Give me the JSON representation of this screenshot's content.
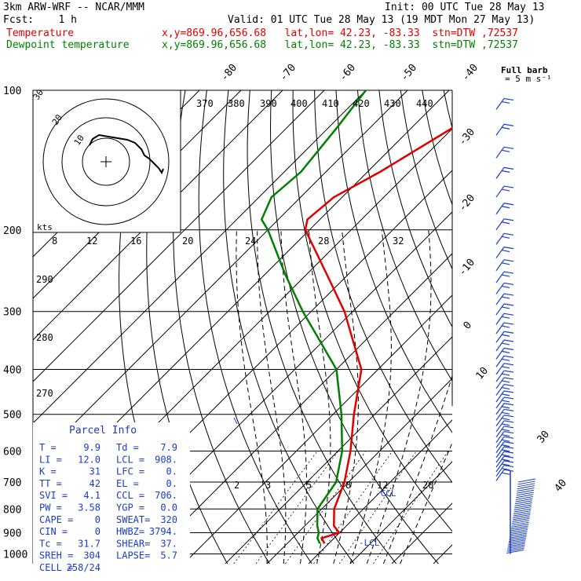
{
  "header": {
    "model": "3km ARW-WRF -- NCAR/MMM",
    "init": "Init: 00 UTC Tue 28 May 13",
    "fcst": "Fcst:    1 h",
    "valid": "Valid: 01 UTC Tue 28 May 13 (19 MDT Mon 27 May 13)",
    "temp_label": "Temperature",
    "dew_label": "Dewpoint temperature",
    "temp_loc": "x,y=869.96,656.68   lat,lon= 42.23, -83.33  stn=DTW ,72537",
    "dew_loc": "x,y=869.96,656.68   lat,lon= 42.23, -83.33  stn=DTW ,72537"
  },
  "colors": {
    "temp": "#e00000",
    "dew": "#008000",
    "panel": "#1a3cc8",
    "barb": "#1a3cc8"
  },
  "chart_data": {
    "type": "line",
    "pressure_levels": [
      100,
      200,
      300,
      400,
      500,
      600,
      700,
      800,
      900,
      1000
    ],
    "pressure_labels": [
      "100",
      "200",
      "300",
      "400",
      "500",
      "600",
      "700",
      "800",
      "900",
      "1000"
    ],
    "isotherm_labels_top": [
      "-80",
      "-70",
      "-60",
      "-50",
      "-40"
    ],
    "isotherm_labels_side": [
      "-30",
      "-20",
      "-10",
      "0",
      "10",
      "30",
      "40"
    ],
    "theta_labels_top": [
      "370",
      "380",
      "390",
      "400",
      "410",
      "420",
      "430",
      "440"
    ],
    "theta_labels_left": [
      "290",
      "280",
      "270"
    ],
    "mixing_ratio_labels": [
      "2",
      "3",
      "5",
      "8",
      "12",
      "20"
    ],
    "temperature_series": {
      "name": "Temperature",
      "points": [
        [
          100,
          -57
        ],
        [
          120,
          -60
        ],
        [
          150,
          -67
        ],
        [
          170,
          -72
        ],
        [
          190,
          -73
        ],
        [
          200,
          -71
        ],
        [
          250,
          -55
        ],
        [
          300,
          -42
        ],
        [
          400,
          -24
        ],
        [
          500,
          -15
        ],
        [
          600,
          -7
        ],
        [
          700,
          -1
        ],
        [
          800,
          3
        ],
        [
          870,
          7
        ],
        [
          900,
          9.9
        ],
        [
          925,
          7
        ],
        [
          950,
          9
        ]
      ]
    },
    "dewpoint_series": {
      "name": "Dewpoint temperature",
      "points": [
        [
          100,
          -90
        ],
        [
          120,
          -88
        ],
        [
          150,
          -86
        ],
        [
          170,
          -87
        ],
        [
          190,
          -84
        ],
        [
          200,
          -80
        ],
        [
          250,
          -65
        ],
        [
          300,
          -52
        ],
        [
          400,
          -30
        ],
        [
          500,
          -18
        ],
        [
          600,
          -9
        ],
        [
          700,
          -3
        ],
        [
          800,
          -1
        ],
        [
          870,
          3
        ],
        [
          900,
          5
        ],
        [
          925,
          6
        ],
        [
          950,
          7.9
        ]
      ]
    },
    "lcl_label": "LCL",
    "ccl_label": "CCL",
    "hodograph": {
      "units_label": "kts",
      "ring_labels": [
        "10",
        "20",
        "30"
      ],
      "axis_tick_labels": [
        "8",
        "12",
        "16",
        "20",
        "24",
        "28",
        "32"
      ]
    },
    "wind_legend": {
      "title": "Full barb",
      "units": "= 5 m s⁻¹"
    }
  },
  "parcel_info": {
    "title": "Parcel Info",
    "rows": [
      [
        "T  =",
        "9.9",
        "Td =",
        "7.9"
      ],
      [
        "LI =",
        "12.0",
        "LCL =",
        "908."
      ],
      [
        "K  =",
        "31",
        "LFC =",
        "0."
      ],
      [
        "TT =",
        "42",
        "EL =",
        "0."
      ],
      [
        "SVI =",
        "4.1",
        "CCL =",
        "706."
      ],
      [
        "PW =",
        "3.58",
        "YGP =",
        "0.0"
      ],
      [
        "CAPE =",
        "0",
        "SWEAT=",
        "320"
      ],
      [
        "CIN =",
        "0",
        "HWBZ=",
        "3794."
      ],
      [
        "Tc =",
        "31.7",
        "SHEAR=",
        "37."
      ],
      [
        "SREH =",
        "304",
        "LAPSE=",
        "5.7"
      ],
      [
        "CELL =",
        "258/24",
        "",
        ""
      ]
    ]
  }
}
